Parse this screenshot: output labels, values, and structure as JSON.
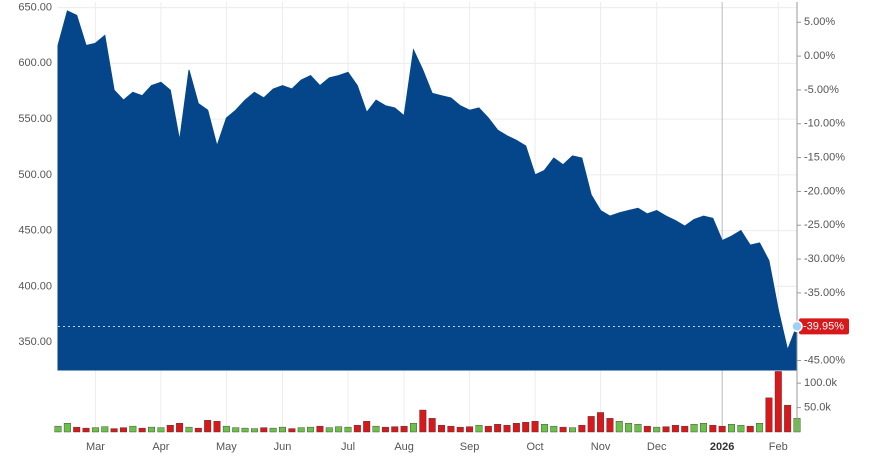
{
  "chart_data": {
    "type": "area",
    "color": "#05468a",
    "categories": [
      null,
      null,
      null,
      null,
      "Mar",
      null,
      null,
      null,
      null,
      null,
      null,
      "Apr",
      null,
      null,
      null,
      null,
      null,
      null,
      "May",
      null,
      null,
      null,
      null,
      null,
      "Jun",
      null,
      null,
      null,
      null,
      null,
      null,
      "Jul",
      null,
      null,
      null,
      null,
      null,
      "Aug",
      null,
      null,
      null,
      null,
      null,
      null,
      "Sep",
      null,
      null,
      null,
      null,
      null,
      null,
      "Oct",
      null,
      null,
      null,
      null,
      null,
      null,
      "Nov",
      null,
      null,
      null,
      null,
      null,
      "Dec",
      null,
      null,
      null,
      null,
      null,
      null,
      "2026",
      null,
      null,
      null,
      null,
      null,
      "Feb",
      null,
      null
    ],
    "values": [
      616,
      647,
      643,
      616,
      618,
      625,
      576,
      567,
      574,
      571,
      580,
      583,
      576,
      531,
      594,
      564,
      558,
      526,
      551,
      558,
      567,
      574,
      569,
      577,
      580,
      577,
      585,
      589,
      580,
      587,
      589,
      592,
      580,
      556,
      567,
      562,
      560,
      553,
      612,
      594,
      573,
      571,
      569,
      562,
      558,
      560,
      551,
      540,
      535,
      531,
      526,
      500,
      504,
      515,
      509,
      517,
      515,
      482,
      468,
      463,
      466,
      468,
      470,
      465,
      468,
      463,
      459,
      454,
      460,
      463,
      461,
      441,
      445,
      450,
      437,
      439,
      423,
      379,
      343,
      365
    ],
    "ylim": [
      325,
      655
    ],
    "yticks": [
      {
        "value": 650,
        "label": "650.00"
      },
      {
        "value": 600,
        "label": "600.00"
      },
      {
        "value": 550,
        "label": "550.00"
      },
      {
        "value": 500,
        "label": "500.00"
      },
      {
        "value": 450,
        "label": "450.00"
      },
      {
        "value": 400,
        "label": "400.00"
      },
      {
        "value": 350,
        "label": "350.00"
      }
    ],
    "y2lim": [
      -46.4,
      8.0
    ],
    "y2ticks": [
      {
        "value": 5,
        "label": "5.00%"
      },
      {
        "value": 0,
        "label": "0.00%"
      },
      {
        "value": -5,
        "label": "-5.00%"
      },
      {
        "value": -10,
        "label": "-10.00%"
      },
      {
        "value": -15,
        "label": "-15.00%"
      },
      {
        "value": -20,
        "label": "-20.00%"
      },
      {
        "value": -25,
        "label": "-25.00%"
      },
      {
        "value": -30,
        "label": "-30.00%"
      },
      {
        "value": -35,
        "label": "-35.00%"
      },
      {
        "value": -40,
        "label": "-40.00%"
      },
      {
        "value": -45,
        "label": "-45.00%"
      }
    ],
    "last_change": {
      "value": -39.95,
      "label": "-39.95%",
      "color": "#d7191c"
    },
    "volume": {
      "values": [
        12000,
        18000,
        10000,
        8000,
        9000,
        11000,
        7000,
        9000,
        12000,
        8000,
        10000,
        9000,
        14000,
        18000,
        10000,
        8000,
        24000,
        22000,
        12000,
        9000,
        8000,
        7000,
        9000,
        8000,
        10000,
        7000,
        9000,
        10000,
        12000,
        9000,
        11000,
        10000,
        14000,
        22000,
        12000,
        10000,
        11000,
        12000,
        18000,
        45000,
        28000,
        14000,
        12000,
        10000,
        11000,
        14000,
        12000,
        16000,
        14000,
        18000,
        20000,
        22000,
        16000,
        12000,
        10000,
        9000,
        14000,
        32000,
        40000,
        28000,
        22000,
        18000,
        16000,
        12000,
        10000,
        11000,
        14000,
        12000,
        16000,
        18000,
        14000,
        12000,
        16000,
        14000,
        12000,
        18000,
        70000,
        124000,
        55000,
        28000
      ],
      "ylim": [
        0,
        127000
      ],
      "yticks": [
        {
          "value": 100000,
          "label": "100.0k"
        },
        {
          "value": 50000,
          "label": "50.0k"
        }
      ],
      "up_color": "#6cc04a",
      "down_color": "#d7191c"
    }
  }
}
